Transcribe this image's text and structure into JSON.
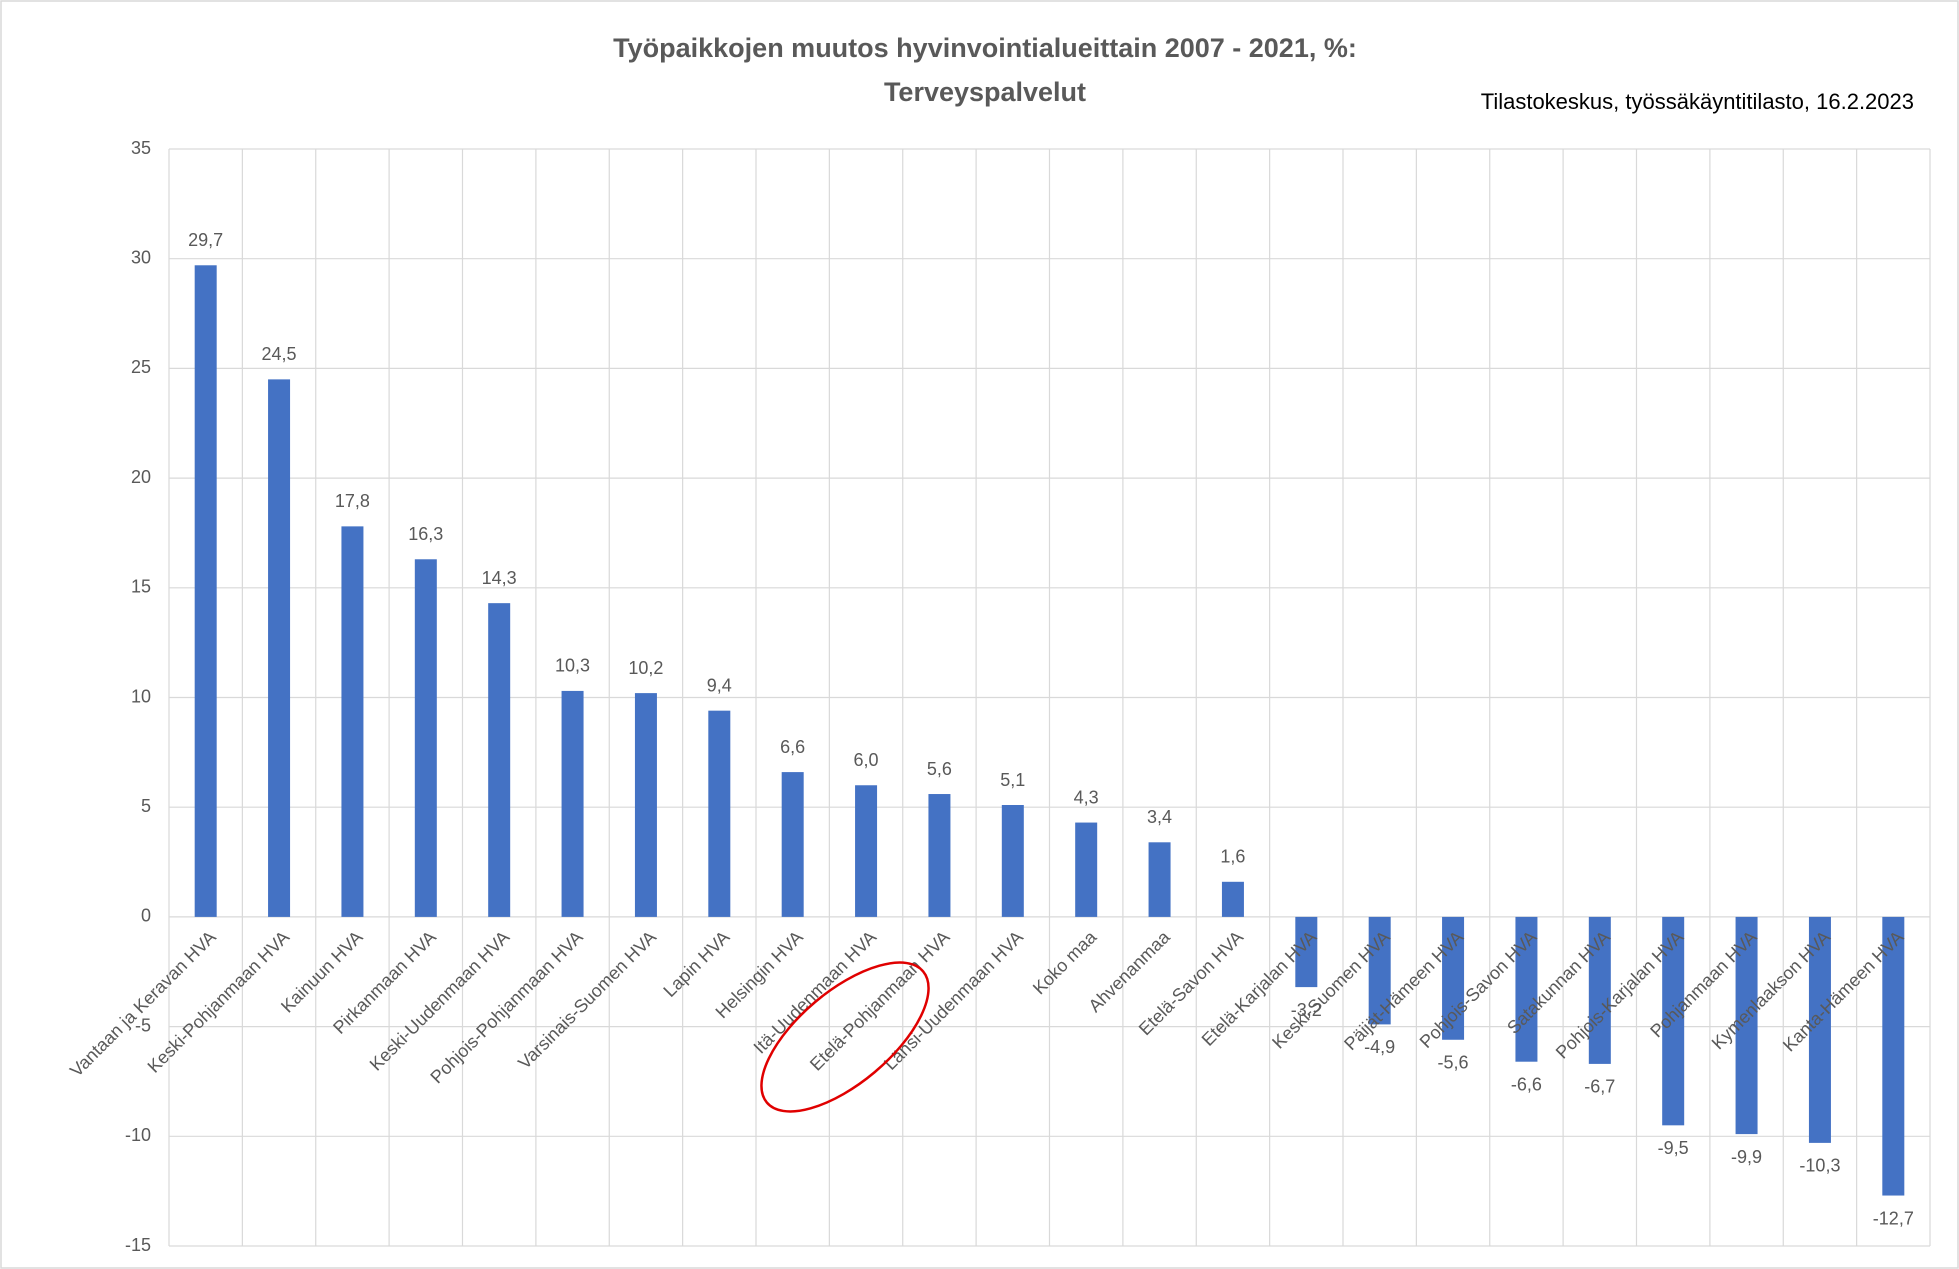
{
  "chart_data": {
    "type": "bar",
    "title": "Työpaikkojen muutos hyvinvointialueittain 2007 - 2021, %:",
    "subtitle": "Terveyspalvelut",
    "source": "Tilastokeskus, työssäkäyntitilasto, 16.2.2023",
    "categories": [
      "Vantaan ja Keravan HVA",
      "Keski-Pohjanmaan HVA",
      "Kainuun HVA",
      "Pirkanmaan HVA",
      "Keski-Uudenmaan HVA",
      "Pohjois-Pohjanmaan HVA",
      "Varsinais-Suomen HVA",
      "Lapin HVA",
      "Helsingin HVA",
      "Itä-Uudenmaan HVA",
      "Etelä-Pohjanmaan HVA",
      "Länsi-Uudenmaan HVA",
      "Koko maa",
      "Ahvenanmaa",
      "Etelä-Savon HVA",
      "Etelä-Karjalan HVA",
      "Keski-Suomen HVA",
      "Päijät-Hämeen HVA",
      "Pohjois-Savon HVA",
      "Satakunnan HVA",
      "Pohjois-Karjalan HVA",
      "Pohjanmaan HVA",
      "Kymenlaakson HVA",
      "Kanta-Hämeen HVA"
    ],
    "values": [
      29.7,
      24.5,
      17.8,
      16.3,
      14.3,
      10.3,
      10.2,
      9.4,
      6.6,
      6.0,
      5.6,
      5.1,
      4.3,
      3.4,
      1.6,
      -3.2,
      -4.9,
      -5.6,
      -6.6,
      -6.7,
      -9.5,
      -9.9,
      -10.3,
      -12.7
    ],
    "value_labels": [
      "29,7",
      "24,5",
      "17,8",
      "16,3",
      "14,3",
      "10,3",
      "10,2",
      "9,4",
      "6,6",
      "6,0",
      "5,6",
      "5,1",
      "4,3",
      "3,4",
      "1,6",
      "-3,2",
      "-4,9",
      "-5,6",
      "-6,6",
      "-6,7",
      "-9,5",
      "-9,9",
      "-10,3",
      "-12,7"
    ],
    "color": "#4472c4",
    "ylim": [
      -15,
      35
    ],
    "yticks": [
      -15,
      -10,
      -5,
      0,
      5,
      10,
      15,
      20,
      25,
      30,
      35
    ],
    "grid": true
  }
}
